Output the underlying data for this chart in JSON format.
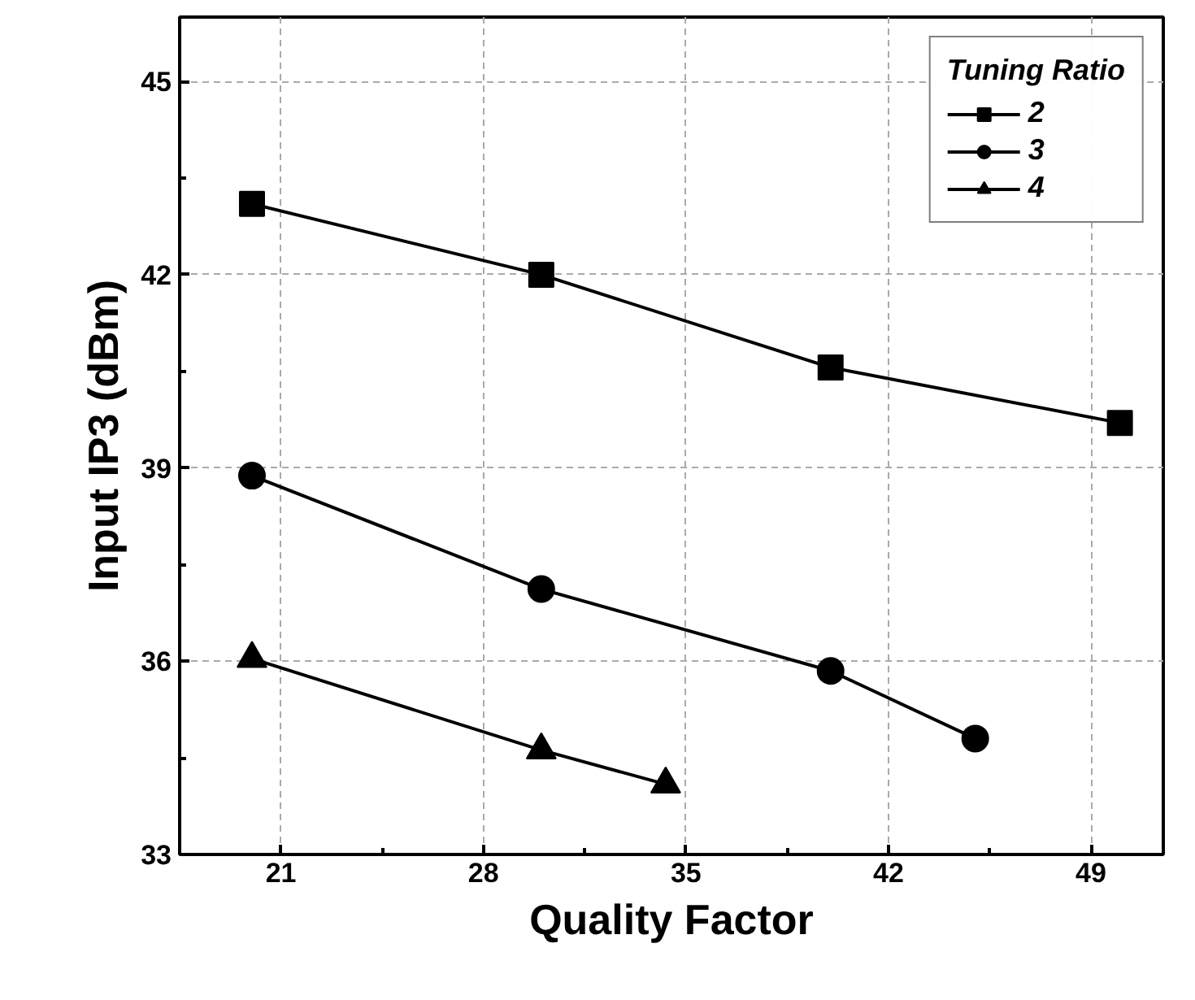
{
  "chart_data": {
    "type": "line",
    "xlabel": "Quality Factor",
    "ylabel": "Input IP3 (dBm)",
    "legend_title": "Tuning Ratio",
    "legend": "top right",
    "grid": true,
    "line_style": "solid",
    "xlim": [
      17.5,
      51.5
    ],
    "ylim": [
      33,
      46
    ],
    "xticks": [
      21,
      28,
      35,
      42,
      49
    ],
    "yticks": [
      33,
      36,
      39,
      42,
      45
    ],
    "series": [
      {
        "name": "2",
        "color": "#000000",
        "marker": "square",
        "x": [
          20,
          30,
          40,
          50
        ],
        "values": [
          43.1,
          42.0,
          40.56,
          39.7
        ]
      },
      {
        "name": "3",
        "color": "#000000",
        "marker": "circle",
        "x": [
          20,
          30,
          40,
          45
        ],
        "values": [
          38.88,
          37.12,
          35.85,
          34.8
        ]
      },
      {
        "name": "4",
        "color": "#000000",
        "marker": "triangle",
        "x": [
          20,
          30,
          34.3
        ],
        "values": [
          36.04,
          34.62,
          34.09
        ]
      }
    ]
  }
}
